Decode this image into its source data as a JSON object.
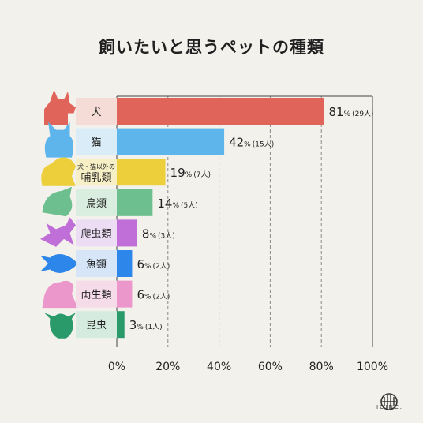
{
  "title": "飼いたいと思うペットの種類",
  "chart_data": {
    "type": "bar",
    "orientation": "horizontal",
    "categories": [
      "犬",
      "猫",
      "犬・猫以外の哺乳類",
      "鳥類",
      "爬虫類",
      "魚類",
      "両生類",
      "昆虫"
    ],
    "category_lines": [
      [
        "犬"
      ],
      [
        "猫"
      ],
      [
        "犬・猫以外の",
        "哺乳類"
      ],
      [
        "鳥類"
      ],
      [
        "爬虫類"
      ],
      [
        "魚類"
      ],
      [
        "両生類"
      ],
      [
        "昆虫"
      ]
    ],
    "values": [
      81,
      42,
      19,
      14,
      8,
      6,
      6,
      3
    ],
    "counts": [
      "(29人)",
      "(15人)",
      "(7人)",
      "(5人)",
      "(3人)",
      "(2人)",
      "(2人)",
      "(1人)"
    ],
    "unit": "%",
    "xlim": [
      0,
      100
    ],
    "xticks": [
      "0%",
      "20%",
      "40%",
      "60%",
      "80%",
      "100%"
    ],
    "grid": true,
    "colors": [
      "#e06459",
      "#5db5ec",
      "#edce3b",
      "#6dbf8f",
      "#c06ed8",
      "#2d86ea",
      "#ec97cb",
      "#2a9a6a"
    ],
    "label_bg": [
      "#f5dcd6",
      "#d9ecf7",
      "#f7f0c6",
      "#d9eedf",
      "#ecdcf4",
      "#d6e6f8",
      "#f6dbe9",
      "#d6ebe0"
    ],
    "icons": [
      "dog-icon",
      "cat-icon",
      "squirrel-icon",
      "bird-icon",
      "lizard-icon",
      "fish-icon",
      "frog-icon",
      "beetle-icon"
    ]
  },
  "logo": {
    "text": "IOINC."
  }
}
